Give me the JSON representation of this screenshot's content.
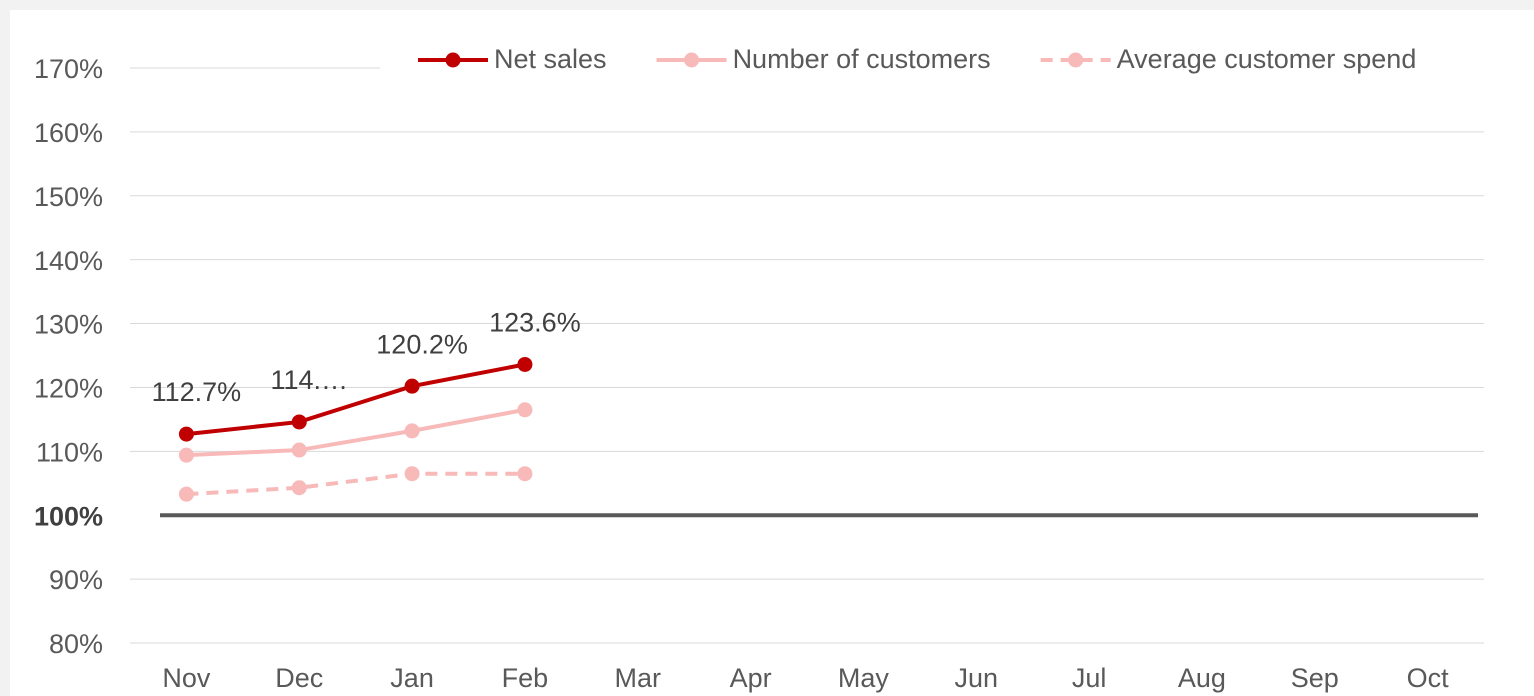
{
  "chart_data": {
    "type": "line",
    "categories": [
      "Nov",
      "Dec",
      "Jan",
      "Feb",
      "Mar",
      "Apr",
      "May",
      "Jun",
      "Jul",
      "Aug",
      "Sep",
      "Oct"
    ],
    "series": [
      {
        "name": "Net sales",
        "color": "#c00000",
        "dash": false,
        "values": [
          112.7,
          114.6,
          120.2,
          123.6,
          null,
          null,
          null,
          null,
          null,
          null,
          null,
          null
        ],
        "value_labels": [
          "112.7%",
          "114.…",
          "120.2%",
          "123.6%",
          null,
          null,
          null,
          null,
          null,
          null,
          null,
          null
        ]
      },
      {
        "name": "Number of customers",
        "color": "#f8b9b9",
        "dash": false,
        "values": [
          109.4,
          110.2,
          113.2,
          116.5,
          null,
          null,
          null,
          null,
          null,
          null,
          null,
          null
        ]
      },
      {
        "name": "Average customer spend",
        "color": "#f8b9b9",
        "dash": true,
        "values": [
          103.3,
          104.3,
          106.5,
          106.5,
          null,
          null,
          null,
          null,
          null,
          null,
          null,
          null
        ]
      }
    ],
    "ylim": [
      80,
      170
    ],
    "yticks": [
      {
        "value": 80,
        "label": "80%"
      },
      {
        "value": 90,
        "label": "90%"
      },
      {
        "value": 100,
        "label": "100%"
      },
      {
        "value": 110,
        "label": "110%"
      },
      {
        "value": 120,
        "label": "120%"
      },
      {
        "value": 130,
        "label": "130%"
      },
      {
        "value": 140,
        "label": "140%"
      },
      {
        "value": 150,
        "label": "150%"
      },
      {
        "value": 160,
        "label": "160%"
      },
      {
        "value": 170,
        "label": "170%"
      }
    ],
    "baseline": 100,
    "grid": true,
    "legend": "top"
  }
}
